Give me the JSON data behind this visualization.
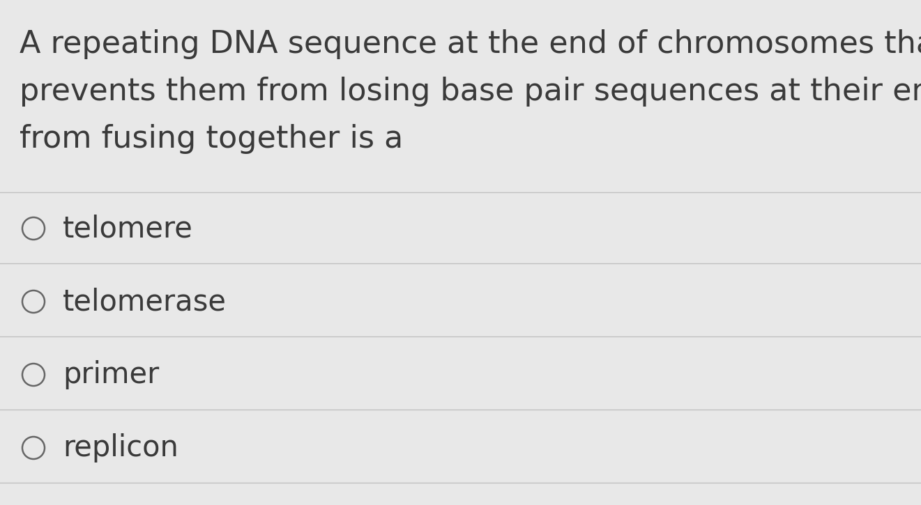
{
  "question_lines": [
    "A repeating DNA sequence at the end of chromosomes that",
    "prevents them from losing base pair sequences at their ends and",
    "from fusing together is a"
  ],
  "options": [
    "telomere",
    "telomerase",
    "primer",
    "replicon"
  ],
  "bg_color": "#e8e8e8",
  "text_color": "#3a3a3a",
  "question_fontsize": 32,
  "option_fontsize": 30,
  "circle_color": "#666666",
  "line_color": "#c0c0c0"
}
